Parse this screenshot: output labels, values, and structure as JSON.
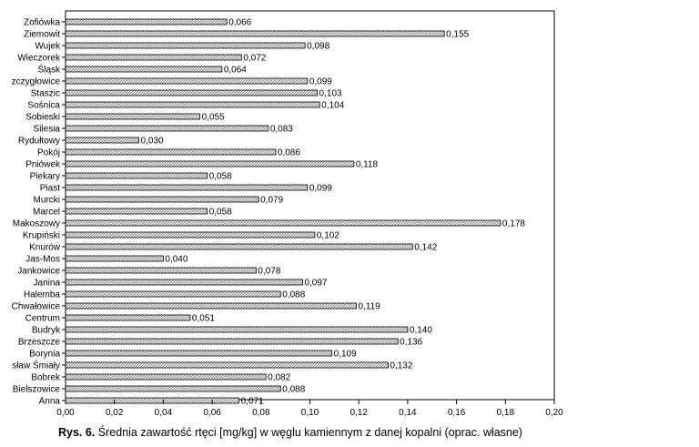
{
  "chart_data": {
    "type": "bar",
    "orientation": "horizontal",
    "categories": [
      "Zofiówka",
      "Ziemowit",
      "Wujek",
      "Wieczorek",
      "Śląsk",
      "zczygłowice",
      "Staszic",
      "Sośnica",
      "Sobieski",
      "Silesia",
      "Rydułtowy",
      "Pokój",
      "Pniówek",
      "Piekary",
      "Piast",
      "Murcki",
      "Marcel",
      "Makoszowy",
      "Krupiński",
      "Knurów",
      "Jas-Mos",
      "Jankowice",
      "Janina",
      "Halemba",
      "Chwałowice",
      "Centrum",
      "Budryk",
      "Brzeszcze",
      "Borynia",
      "sław Śmiały",
      "Bobrek",
      "Bielszowice",
      "Anna"
    ],
    "values": [
      0.066,
      0.155,
      0.098,
      0.072,
      0.064,
      0.099,
      0.103,
      0.104,
      0.055,
      0.083,
      0.03,
      0.086,
      0.118,
      0.058,
      0.099,
      0.079,
      0.058,
      0.178,
      0.102,
      0.142,
      0.04,
      0.078,
      0.097,
      0.088,
      0.119,
      0.051,
      0.14,
      0.136,
      0.109,
      0.132,
      0.082,
      0.088,
      0.071
    ],
    "value_labels": [
      "0,066",
      "0,155",
      "0,098",
      "0,072",
      "0,064",
      "0,099",
      "0,103",
      "0,104",
      "0,055",
      "0,083",
      "0,030",
      "0,086",
      "0,118",
      "0,058",
      "0,099",
      "0,079",
      "0,058",
      "0,178",
      "0,102",
      "0,142",
      "0,040",
      "0,078",
      "0,097",
      "0,088",
      "0,119",
      "0,051",
      "0,140",
      "0,136",
      "0,109",
      "0,132",
      "0,082",
      "0,088",
      "0,071"
    ],
    "xticks": [
      0.0,
      0.02,
      0.04,
      0.06,
      0.08,
      0.1,
      0.12,
      0.14,
      0.16,
      0.18,
      0.2
    ],
    "xtick_labels": [
      "0,00",
      "0,02",
      "0,04",
      "0,06",
      "0,08",
      "0,10",
      "0,12",
      "0,14",
      "0,16",
      "0,18",
      "0,20"
    ],
    "xlim": [
      0,
      0.2
    ],
    "grid": false,
    "bar_fill": "hatched light gray",
    "bar_color": "#d8d8d8",
    "edge_color": "#000000"
  },
  "caption": {
    "prefix": "Rys. 6.",
    "text": "Średnia zawartość rtęci [mg/kg] w węglu kamiennym z danej kopalni (oprac. własne)"
  }
}
